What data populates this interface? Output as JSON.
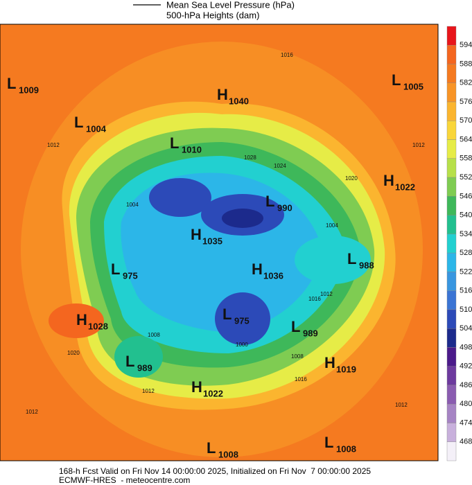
{
  "header": {
    "legend_line": "Mean Sea Level Pressure (hPa)",
    "legend_fill": "500-hPa Heights (dam)"
  },
  "centers": [
    {
      "type": "L",
      "value": "1009"
    },
    {
      "type": "L",
      "value": "1004"
    },
    {
      "type": "H",
      "value": "1040"
    },
    {
      "type": "L",
      "value": "1005"
    },
    {
      "type": "L",
      "value": "1010"
    },
    {
      "type": "H",
      "value": "1022"
    },
    {
      "type": "L",
      "value": "990"
    },
    {
      "type": "H",
      "value": "1035"
    },
    {
      "type": "L",
      "value": "975"
    },
    {
      "type": "H",
      "value": "1036"
    },
    {
      "type": "L",
      "value": "988"
    },
    {
      "type": "L",
      "value": "975"
    },
    {
      "type": "L",
      "value": "989"
    },
    {
      "type": "H",
      "value": "1028"
    },
    {
      "type": "L",
      "value": "989"
    },
    {
      "type": "H",
      "value": "1019"
    },
    {
      "type": "H",
      "value": "1022"
    },
    {
      "type": "L",
      "value": "1008"
    },
    {
      "type": "L",
      "value": "1008"
    }
  ],
  "isobar_labels": [
    "1016",
    "1012",
    "1020",
    "1024",
    "1028",
    "1004",
    "1012",
    "1016",
    "1008",
    "1020",
    "1012",
    "1016",
    "1012",
    "1012",
    "1000",
    "1008",
    "1004",
    "1012"
  ],
  "colorbar": {
    "labels": [
      "594",
      "588",
      "582",
      "576",
      "570",
      "564",
      "558",
      "552",
      "546",
      "540",
      "534",
      "528",
      "522",
      "516",
      "510",
      "504",
      "498",
      "492",
      "486",
      "480",
      "474",
      "468"
    ],
    "colors": [
      "#e8151b",
      "#f4661f",
      "#f57a20",
      "#f89426",
      "#fbb52f",
      "#f9d63a",
      "#e6ec47",
      "#b7e04a",
      "#7fcc52",
      "#3eb85a",
      "#22c08f",
      "#22d0d0",
      "#2cb6e8",
      "#3896e0",
      "#3a74d4",
      "#2c4ab8",
      "#1c2a8c",
      "#4b1a8a",
      "#6d3a9e",
      "#8a5cb0",
      "#a684c4",
      "#c8b0dc",
      "#f4f0f8"
    ]
  },
  "footer": {
    "line1": "168-h Fcst Valid on Fri Nov 14 00:00:00 2025, Initialized on Fri Nov  7 00:00:00 2025",
    "line2": "ECMWF-HRES  - meteocentre.com"
  }
}
